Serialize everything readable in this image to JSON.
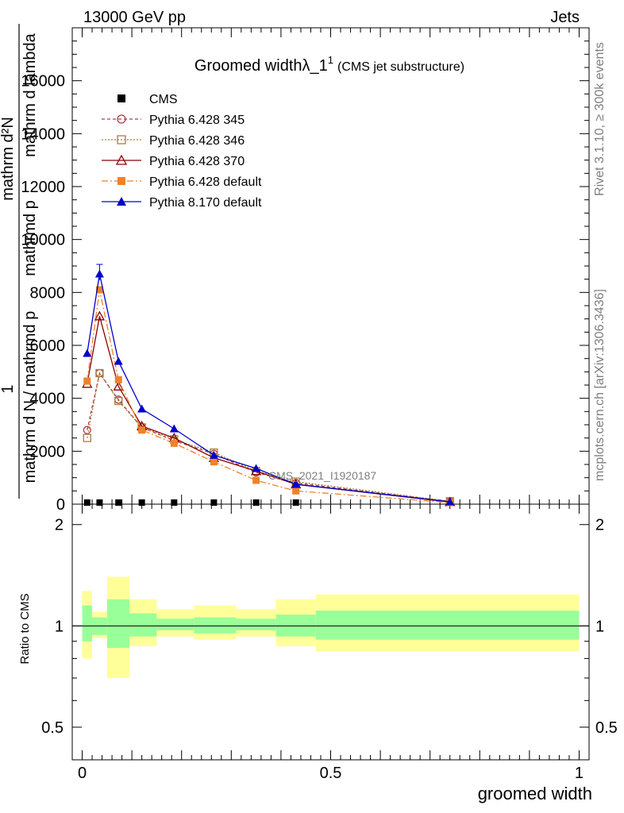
{
  "header": {
    "left": "13000 GeV pp",
    "right": "Jets"
  },
  "side": {
    "rivet": "Rivet 3.1.10, ≥ 300k events",
    "mcplots": "mcplots.cern.ch [arXiv:1306.3436]"
  },
  "chart_data": [
    {
      "type": "line",
      "title": "Groomed widthλ_1",
      "title_sup": "1",
      "subtitle": "(CMS jet substructure)",
      "ylabel_fraction_num": "1",
      "ylabel_lines": [
        "mathrm dN / mathrmd p_T mathrmd p_T mathrm d lambda",
        "mathrm d^2N"
      ],
      "ylabel_lines_display": [
        "mathrm d N / mathrmd p",
        "mathrmd p",
        "mathrm d lambda"
      ],
      "ylabel_top": "mathrm d²N",
      "watermark": "CMS_2021_I1920187",
      "xlim": [
        -0.02,
        1.02
      ],
      "ylim": [
        0,
        18000
      ],
      "yticks": [
        0,
        2000,
        4000,
        6000,
        8000,
        10000,
        12000,
        14000,
        16000
      ],
      "ytick_labels": [
        "0",
        "2000",
        "4000",
        "6000",
        "8000",
        "10000",
        "12000",
        "14000",
        "16000"
      ],
      "x": [
        0.01,
        0.035,
        0.073,
        0.12,
        0.185,
        0.265,
        0.35,
        0.43,
        0.74
      ],
      "series": [
        {
          "name": "CMS",
          "color": "#000000",
          "marker": "square",
          "dash": "",
          "values": [
            20,
            20,
            20,
            20,
            20,
            20,
            20,
            20,
            20
          ]
        },
        {
          "name": "Pythia 6.428 345",
          "color": "#b03a48",
          "marker": "circle-open",
          "dash": "4,3",
          "values": [
            2800,
            4950,
            3950,
            2900,
            2400,
            1900,
            1200,
            800,
            100
          ]
        },
        {
          "name": "Pythia 6.428 346",
          "color": "#a57f3a",
          "marker": "square-open",
          "dash": "2,2",
          "values": [
            2500,
            4950,
            3900,
            2900,
            2450,
            1950,
            1250,
            850,
            110
          ]
        },
        {
          "name": "Pythia 6.428 370",
          "color": "#8b0000",
          "marker": "triangle-open",
          "dash": "",
          "values": [
            4550,
            7100,
            4450,
            2950,
            2500,
            1750,
            1250,
            750,
            80
          ]
        },
        {
          "name": "Pythia 6.428 default",
          "color": "#f0822a",
          "marker": "square-filled",
          "dash": "8,3,2,3",
          "values": [
            4650,
            8100,
            4700,
            2800,
            2300,
            1600,
            900,
            500,
            60
          ]
        },
        {
          "name": "Pythia 8.170 default",
          "color": "#0000cc",
          "marker": "triangle-filled",
          "dash": "",
          "values": [
            5700,
            8700,
            5400,
            3600,
            2850,
            1850,
            1350,
            750,
            90
          ]
        }
      ]
    },
    {
      "type": "area",
      "ylabel": "Ratio to CMS",
      "xlabel": "groomed width",
      "xticks": [
        0,
        0.5,
        1
      ],
      "xtick_labels": [
        "0",
        "0.5",
        "1"
      ],
      "yticks": [
        0.5,
        1,
        2
      ],
      "ytick_labels": [
        "0.5",
        "1",
        "2"
      ],
      "ylim": [
        0.4,
        2.3
      ],
      "bins": [
        {
          "x0": 0.0,
          "x1": 0.02,
          "stat_lo": 0.9,
          "stat_hi": 1.15,
          "tot_lo": 0.8,
          "tot_hi": 1.27
        },
        {
          "x0": 0.02,
          "x1": 0.05,
          "stat_lo": 0.94,
          "stat_hi": 1.06,
          "tot_lo": 0.92,
          "tot_hi": 1.1
        },
        {
          "x0": 0.05,
          "x1": 0.095,
          "stat_lo": 0.86,
          "stat_hi": 1.2,
          "tot_lo": 0.7,
          "tot_hi": 1.4
        },
        {
          "x0": 0.095,
          "x1": 0.15,
          "stat_lo": 0.93,
          "stat_hi": 1.09,
          "tot_lo": 0.87,
          "tot_hi": 1.2
        },
        {
          "x0": 0.15,
          "x1": 0.225,
          "stat_lo": 0.97,
          "stat_hi": 1.05,
          "tot_lo": 0.93,
          "tot_hi": 1.12
        },
        {
          "x0": 0.225,
          "x1": 0.31,
          "stat_lo": 0.95,
          "stat_hi": 1.06,
          "tot_lo": 0.91,
          "tot_hi": 1.15
        },
        {
          "x0": 0.31,
          "x1": 0.39,
          "stat_lo": 0.97,
          "stat_hi": 1.05,
          "tot_lo": 0.93,
          "tot_hi": 1.12
        },
        {
          "x0": 0.39,
          "x1": 0.47,
          "stat_lo": 0.93,
          "stat_hi": 1.08,
          "tot_lo": 0.87,
          "tot_hi": 1.2
        },
        {
          "x0": 0.47,
          "x1": 1.0,
          "stat_lo": 0.91,
          "stat_hi": 1.11,
          "tot_lo": 0.84,
          "tot_hi": 1.24
        }
      ]
    }
  ]
}
